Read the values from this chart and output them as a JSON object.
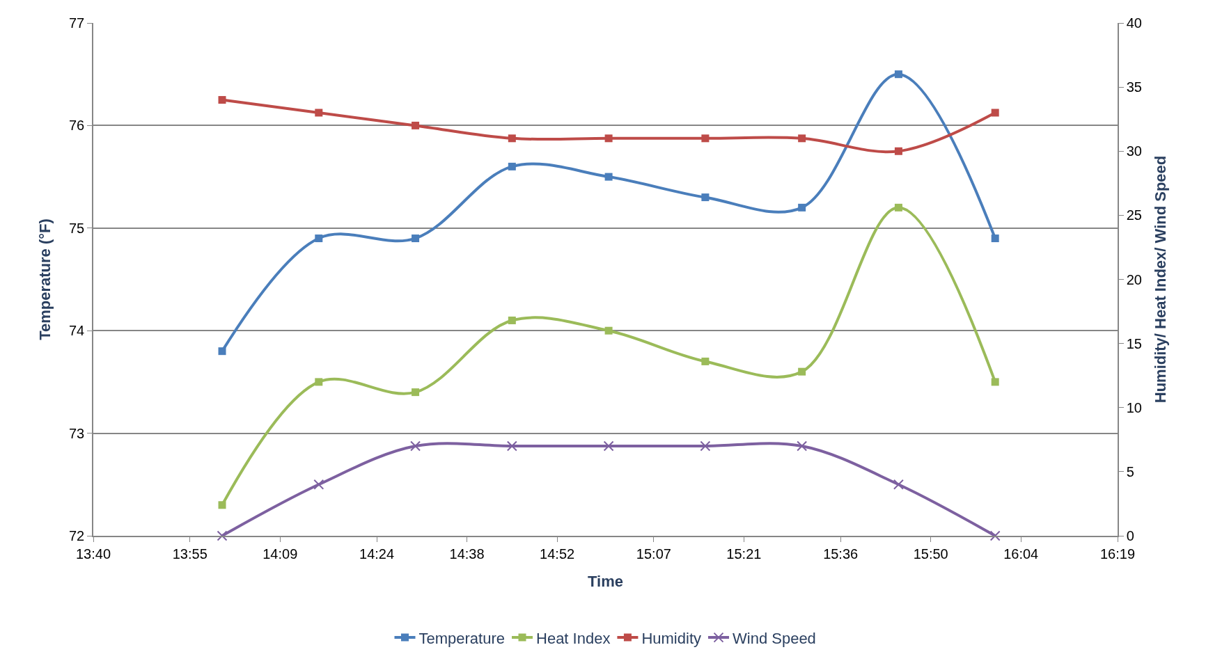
{
  "chart_data": {
    "type": "line",
    "xlabel": "Time",
    "ylabel": "Temperature (°F)",
    "y2label": "Humidity/ Heat Index/ Wind Speed",
    "x": [
      14.0,
      14.25,
      14.5,
      14.75,
      15.0,
      15.25,
      15.5,
      15.75,
      16.0
    ],
    "xlim": [
      13.6667,
      16.3167
    ],
    "xticks": [
      {
        "value": 13.6667,
        "label": "13:40"
      },
      {
        "value": 13.9167,
        "label": "13:55"
      },
      {
        "value": 14.15,
        "label": "14:09"
      },
      {
        "value": 14.4,
        "label": "14:24"
      },
      {
        "value": 14.6333,
        "label": "14:38"
      },
      {
        "value": 14.8667,
        "label": "14:52"
      },
      {
        "value": 15.1167,
        "label": "15:07"
      },
      {
        "value": 15.35,
        "label": "15:21"
      },
      {
        "value": 15.6,
        "label": "15:36"
      },
      {
        "value": 15.8333,
        "label": "15:50"
      },
      {
        "value": 16.0667,
        "label": "16:04"
      },
      {
        "value": 16.3167,
        "label": "16:19"
      }
    ],
    "ylim": [
      72,
      77
    ],
    "yticks": [
      72,
      73,
      74,
      75,
      76,
      77
    ],
    "y2lim": [
      0,
      40
    ],
    "y2ticks": [
      0,
      5,
      10,
      15,
      20,
      25,
      30,
      35,
      40
    ],
    "grid": "y",
    "legend": "bottom",
    "series": [
      {
        "name": "Temperature",
        "color": "#4a7ebb",
        "marker": "square",
        "values": [
          73.8,
          74.9,
          74.9,
          75.6,
          75.5,
          75.3,
          75.2,
          76.5,
          74.9
        ]
      },
      {
        "name": "Heat Index",
        "color": "#9bbb59",
        "marker": "square",
        "values": [
          72.3,
          73.5,
          73.4,
          74.1,
          74.0,
          73.7,
          73.6,
          75.2,
          73.5
        ]
      },
      {
        "name": "Humidity",
        "color": "#be4b48",
        "marker": "square",
        "axis": "y2",
        "values": [
          34,
          33,
          32,
          31,
          31,
          31,
          31,
          30,
          33
        ]
      },
      {
        "name": "Wind Speed",
        "color": "#7d60a0",
        "marker": "cross",
        "axis": "y2",
        "values": [
          0,
          4,
          7,
          7,
          7,
          7,
          7,
          4,
          0
        ]
      }
    ]
  }
}
